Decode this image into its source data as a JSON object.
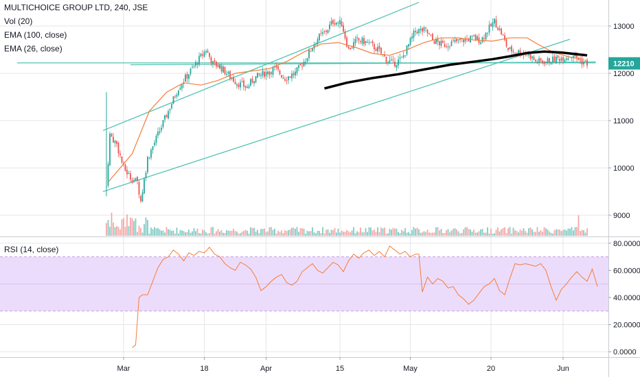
{
  "header": {
    "title": "MULTICHOICE GROUP LTD, 240, JSE",
    "indicators": [
      "Vol (20)",
      "EMA (100, close)",
      "EMA (26, close)"
    ]
  },
  "rsi_panel": {
    "label": "RSI (14, close)"
  },
  "colors": {
    "up": "#26a69a",
    "down": "#ef5350",
    "up_vol": "#80cbc4",
    "down_vol": "#f4a7a7",
    "ema26": "#f57c38",
    "ema100": "#000000",
    "trendline": "#4fc3b3",
    "rsi_line": "#f57c38",
    "rsi_band": "#ecdcfb",
    "rsi_band_border": "#c39ce6",
    "price_tag": "#26a69a",
    "grid": "#e5e5ea"
  },
  "chart_data": [
    {
      "type": "candlestick",
      "title": "MULTICHOICE GROUP LTD, 240, JSE",
      "y_ticks": [
        9000,
        10000,
        11000,
        12000,
        13000
      ],
      "y_range": [
        8550,
        13550
      ],
      "x_ticks": [
        "Mar",
        "18",
        "Apr",
        "15",
        "May",
        "20",
        "Jun"
      ],
      "last_price": "12210",
      "ema_26": [
        [
          1,
          9700
        ],
        [
          15,
          10300
        ],
        [
          25,
          11200
        ],
        [
          35,
          11600
        ],
        [
          45,
          11800
        ],
        [
          55,
          11750
        ],
        [
          65,
          11850
        ],
        [
          75,
          12000
        ],
        [
          85,
          12050
        ],
        [
          95,
          12100
        ],
        [
          105,
          12250
        ],
        [
          115,
          12450
        ],
        [
          125,
          12620
        ],
        [
          135,
          12650
        ],
        [
          145,
          12550
        ],
        [
          155,
          12420
        ],
        [
          165,
          12380
        ],
        [
          175,
          12500
        ],
        [
          185,
          12650
        ],
        [
          195,
          12750
        ],
        [
          205,
          12750
        ],
        [
          215,
          12700
        ],
        [
          225,
          12680
        ],
        [
          235,
          12750
        ],
        [
          245,
          12750
        ],
        [
          252,
          12600
        ],
        [
          260,
          12450
        ],
        [
          270,
          12340
        ],
        [
          278,
          12300
        ]
      ],
      "ema_100": [
        [
          127,
          11680
        ],
        [
          140,
          11800
        ],
        [
          155,
          11900
        ],
        [
          170,
          11980
        ],
        [
          185,
          12080
        ],
        [
          200,
          12180
        ],
        [
          215,
          12250
        ],
        [
          225,
          12300
        ],
        [
          235,
          12360
        ],
        [
          245,
          12430
        ],
        [
          255,
          12460
        ],
        [
          265,
          12440
        ],
        [
          275,
          12400
        ],
        [
          280,
          12380
        ]
      ],
      "trendlines": [
        {
          "from": [
            -2,
            9500
          ],
          "to": [
            270,
            12720
          ]
        },
        {
          "from": [
            -2,
            10790
          ],
          "to": [
            182,
            13500
          ]
        },
        {
          "from": [
            14,
            12180
          ],
          "to": [
            285,
            12240
          ]
        },
        {
          "from": [
            -52,
            12220
          ],
          "to": [
            285,
            12220
          ]
        }
      ]
    },
    {
      "type": "line",
      "title": "RSI (14, close)",
      "y_ticks": [
        "0.0000",
        "20.0000",
        "40.0000",
        "60.0000",
        "80.0000"
      ],
      "y_range": [
        -4,
        84
      ],
      "band": [
        30,
        70
      ],
      "midline": 50,
      "values": [
        [
          15,
          3
        ],
        [
          17,
          5
        ],
        [
          19,
          40
        ],
        [
          21,
          42
        ],
        [
          24,
          42
        ],
        [
          27,
          52
        ],
        [
          30,
          62
        ],
        [
          33,
          68
        ],
        [
          36,
          70
        ],
        [
          39,
          75
        ],
        [
          42,
          72
        ],
        [
          45,
          67
        ],
        [
          48,
          73
        ],
        [
          51,
          71
        ],
        [
          54,
          74
        ],
        [
          57,
          73
        ],
        [
          60,
          77
        ],
        [
          63,
          72
        ],
        [
          66,
          70
        ],
        [
          69,
          65
        ],
        [
          72,
          62
        ],
        [
          75,
          60
        ],
        [
          78,
          66
        ],
        [
          81,
          64
        ],
        [
          84,
          61
        ],
        [
          87,
          55
        ],
        [
          90,
          45
        ],
        [
          93,
          48
        ],
        [
          96,
          52
        ],
        [
          99,
          55
        ],
        [
          102,
          57
        ],
        [
          105,
          51
        ],
        [
          108,
          49
        ],
        [
          111,
          52
        ],
        [
          114,
          59
        ],
        [
          117,
          62
        ],
        [
          120,
          65
        ],
        [
          123,
          60
        ],
        [
          126,
          58
        ],
        [
          129,
          62
        ],
        [
          132,
          66
        ],
        [
          135,
          64
        ],
        [
          138,
          59
        ],
        [
          141,
          67
        ],
        [
          144,
          72
        ],
        [
          147,
          69
        ],
        [
          150,
          73
        ],
        [
          153,
          75
        ],
        [
          156,
          71
        ],
        [
          159,
          74
        ],
        [
          162,
          70
        ],
        [
          165,
          78
        ],
        [
          168,
          75
        ],
        [
          171,
          72
        ],
        [
          174,
          74
        ],
        [
          177,
          70
        ],
        [
          180,
          72
        ],
        [
          182,
          72
        ],
        [
          184,
          44
        ],
        [
          187,
          55
        ],
        [
          190,
          50
        ],
        [
          193,
          54
        ],
        [
          196,
          52
        ],
        [
          199,
          47
        ],
        [
          202,
          48
        ],
        [
          205,
          42
        ],
        [
          208,
          39
        ],
        [
          211,
          35
        ],
        [
          214,
          38
        ],
        [
          217,
          43
        ],
        [
          220,
          48
        ],
        [
          223,
          50
        ],
        [
          226,
          54
        ],
        [
          229,
          45
        ],
        [
          232,
          42
        ],
        [
          235,
          54
        ],
        [
          238,
          65
        ],
        [
          241,
          64
        ],
        [
          244,
          65
        ],
        [
          247,
          64
        ],
        [
          250,
          63
        ],
        [
          253,
          65
        ],
        [
          256,
          60
        ],
        [
          259,
          48
        ],
        [
          262,
          38
        ],
        [
          265,
          46
        ],
        [
          268,
          50
        ],
        [
          271,
          55
        ],
        [
          274,
          59
        ],
        [
          277,
          55
        ],
        [
          280,
          52
        ],
        [
          283,
          61
        ],
        [
          286,
          48
        ]
      ]
    }
  ]
}
